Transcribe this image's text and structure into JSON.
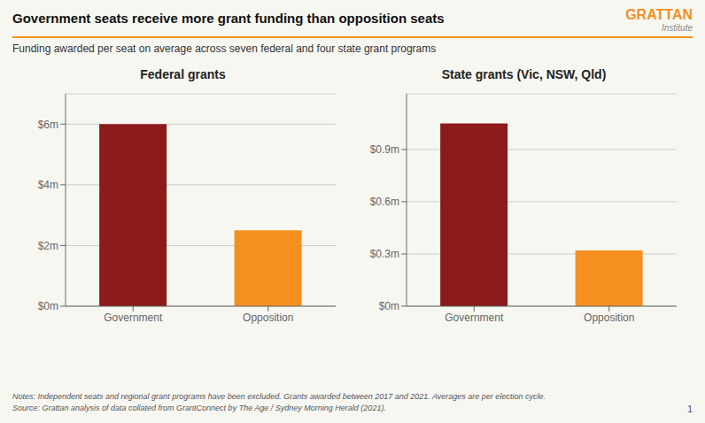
{
  "title": "Government seats receive more grant funding than opposition seats",
  "subtitle": "Funding awarded per seat on average across seven federal and four state grant programs",
  "annotations": [
    "GRATTAN",
    "Institute",
    "Notes: Independent seats and regional grant programs have been excluded. Grants awarded between 2017 and 2021. Averages are per election cycle.",
    "Source: Grattan analysis of data collated from GrantConnect by The Age / Sydney Morning Herald (2021).",
    "1"
  ],
  "chart_data": [
    {
      "type": "bar",
      "title": "Federal grants",
      "categories": [
        "Government",
        "Opposition"
      ],
      "values": [
        6.0,
        2.5
      ],
      "colors": [
        "#8B1A1A",
        "#F5901E"
      ],
      "ylim": [
        0,
        7.0
      ],
      "yticks": [
        {
          "value": 0,
          "label": "$0m"
        },
        {
          "value": 2,
          "label": "$2m"
        },
        {
          "value": 4,
          "label": "$4m"
        },
        {
          "value": 6,
          "label": "$6m"
        }
      ],
      "grid": true
    },
    {
      "type": "bar",
      "title": "State grants (Vic, NSW, Qld)",
      "categories": [
        "Government",
        "Opposition"
      ],
      "values": [
        1.05,
        0.32
      ],
      "colors": [
        "#8B1A1A",
        "#F5901E"
      ],
      "ylim": [
        0,
        1.22
      ],
      "yticks": [
        {
          "value": 0,
          "label": "$0m"
        },
        {
          "value": 0.3,
          "label": "$0.3m"
        },
        {
          "value": 0.6,
          "label": "$0.6m"
        },
        {
          "value": 0.9,
          "label": "$0.9m"
        }
      ],
      "grid": true
    }
  ]
}
